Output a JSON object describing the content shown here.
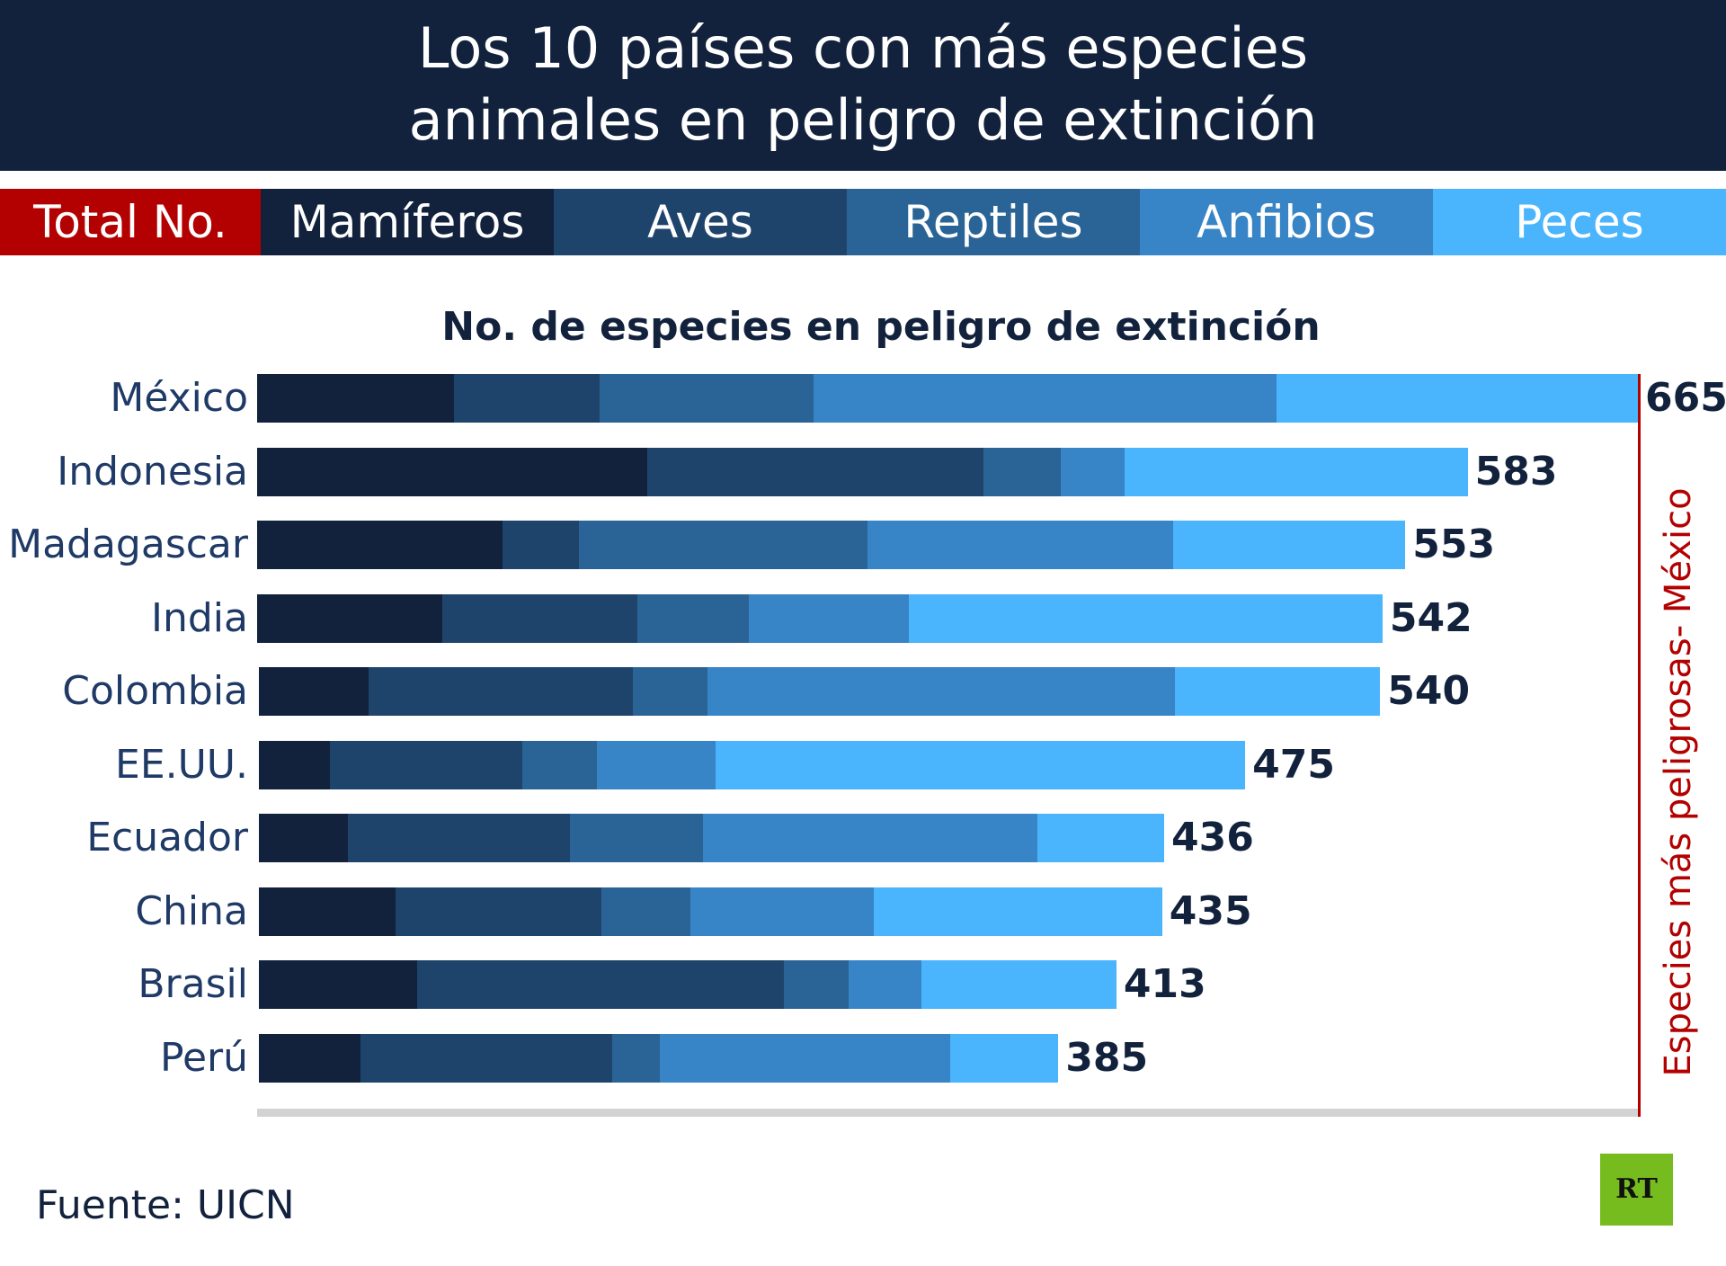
{
  "title": {
    "line1": "Los 10 países con más especies",
    "line2": "animales en peligro de extinción"
  },
  "legend": [
    {
      "label": "Total No.",
      "color": "#b30000"
    },
    {
      "label": "Mamíferos",
      "color": "#12223d"
    },
    {
      "label": "Aves",
      "color": "#1f446c"
    },
    {
      "label": "Reptiles",
      "color": "#2a6496"
    },
    {
      "label": "Anfibios",
      "color": "#3784c6"
    },
    {
      "label": "Peces",
      "color": "#4ab4fc"
    }
  ],
  "side_label": "Especies más peligrosas- México",
  "source": "Fuente: UICN",
  "logo": "RT",
  "chart_data": {
    "type": "bar",
    "orientation": "horizontal",
    "stacked": true,
    "title": "No. de especies en peligro de extinción",
    "categories": [
      "México",
      "Indonesia",
      "Madagascar",
      "India",
      "Colombia",
      "EE.UU.",
      "Ecuador",
      "China",
      "Brasil",
      "Perú"
    ],
    "totals": [
      665,
      583,
      553,
      542,
      540,
      475,
      436,
      435,
      413,
      385
    ],
    "series": [
      {
        "name": "Mamíferos",
        "color": "#12223d",
        "values": [
          95,
          188,
          118,
          89,
          53,
          34,
          43,
          66,
          76,
          49
        ]
      },
      {
        "name": "Aves",
        "color": "#1f446c",
        "values": [
          70,
          162,
          37,
          94,
          127,
          93,
          107,
          99,
          177,
          121
        ]
      },
      {
        "name": "Reptiles",
        "color": "#2a6496",
        "values": [
          103,
          37,
          139,
          54,
          36,
          36,
          64,
          43,
          31,
          23
        ]
      },
      {
        "name": "Anfibios",
        "color": "#3784c6",
        "values": [
          223,
          31,
          147,
          77,
          225,
          57,
          161,
          88,
          35,
          140
        ]
      },
      {
        "name": "Peces",
        "color": "#4ab4fc",
        "values": [
          174,
          165,
          112,
          228,
          99,
          255,
          61,
          139,
          94,
          52
        ]
      }
    ],
    "xlim": [
      0,
      665
    ],
    "grid": false,
    "legend_position": "top"
  }
}
